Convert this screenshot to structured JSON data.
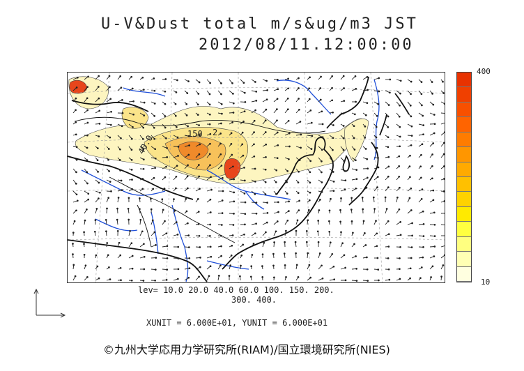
{
  "title": {
    "line1": "U-V&Dust total m/s&ug/m3 JST",
    "line2": "2012/08/11.12:00:00"
  },
  "colorbar": {
    "max_label": "400",
    "min_label": "10",
    "colors": [
      "#ffffe0",
      "#ffffb4",
      "#ffff80",
      "#ffff40",
      "#ffea00",
      "#ffd200",
      "#ffc000",
      "#ffaa00",
      "#ff9600",
      "#ff7c00",
      "#ff6400",
      "#f85000",
      "#f04000",
      "#e83200"
    ]
  },
  "levels": {
    "line1": "lev= 10.0 20.0 40.0 60.0 100. 150. 200.",
    "line2": "300. 400."
  },
  "units": "XUNIT = 6.000E+01, YUNIT = 6.000E+01",
  "credit": "©九州大学応用力学研究所(RIAM)/国立環境研究所(NIES)",
  "map": {
    "contour_labels": [
      "40.0",
      "150",
      "2"
    ],
    "colors": {
      "dust_light": "#fdf5c0",
      "dust_mid": "#fbe48a",
      "dust_orange": "#f7a63a",
      "dust_red": "#e8461c",
      "coast": "#111111",
      "river": "#1f4fd8",
      "grid": "#9a9a9a"
    }
  }
}
